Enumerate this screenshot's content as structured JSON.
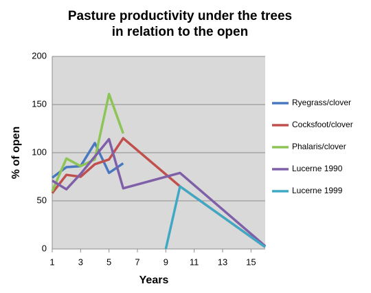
{
  "chart_data": {
    "type": "line",
    "title": [
      "Pasture productivity under the trees",
      "in relation to the open"
    ],
    "x_label": "Years",
    "y_label": "% of open",
    "xlim": [
      1,
      16
    ],
    "xticks": [
      1,
      3,
      5,
      7,
      9,
      11,
      13,
      15
    ],
    "ylim": [
      0,
      200
    ],
    "yticks": [
      0,
      50,
      100,
      150,
      200
    ],
    "grid": true,
    "legend": "right",
    "series": [
      {
        "name": "Ryegrass/clover",
        "color": "#4a78c0",
        "x": [
          1,
          2,
          3,
          4,
          5,
          6
        ],
        "values": [
          74,
          85,
          86,
          110,
          79,
          89
        ]
      },
      {
        "name": "Cocksfoot/clover",
        "color": "#c0504d",
        "x": [
          1,
          2,
          3,
          4,
          5,
          6,
          10,
          16
        ],
        "values": [
          58,
          77,
          75,
          88,
          93,
          115,
          65,
          2
        ]
      },
      {
        "name": "Phalaris/clover",
        "color": "#8dc456",
        "x": [
          1,
          2,
          3,
          4,
          5,
          6
        ],
        "values": [
          60,
          94,
          86,
          93,
          161,
          120
        ]
      },
      {
        "name": "Lucerne 1990",
        "color": "#7f5fa8",
        "x": [
          1,
          2,
          3,
          4,
          5,
          6,
          10,
          16
        ],
        "values": [
          71,
          62,
          78,
          96,
          114,
          63,
          79,
          3
        ]
      },
      {
        "name": "Lucerne 1999",
        "color": "#3fa9c5",
        "x": [
          9,
          10,
          16
        ],
        "values": [
          0,
          65,
          2
        ]
      }
    ]
  }
}
